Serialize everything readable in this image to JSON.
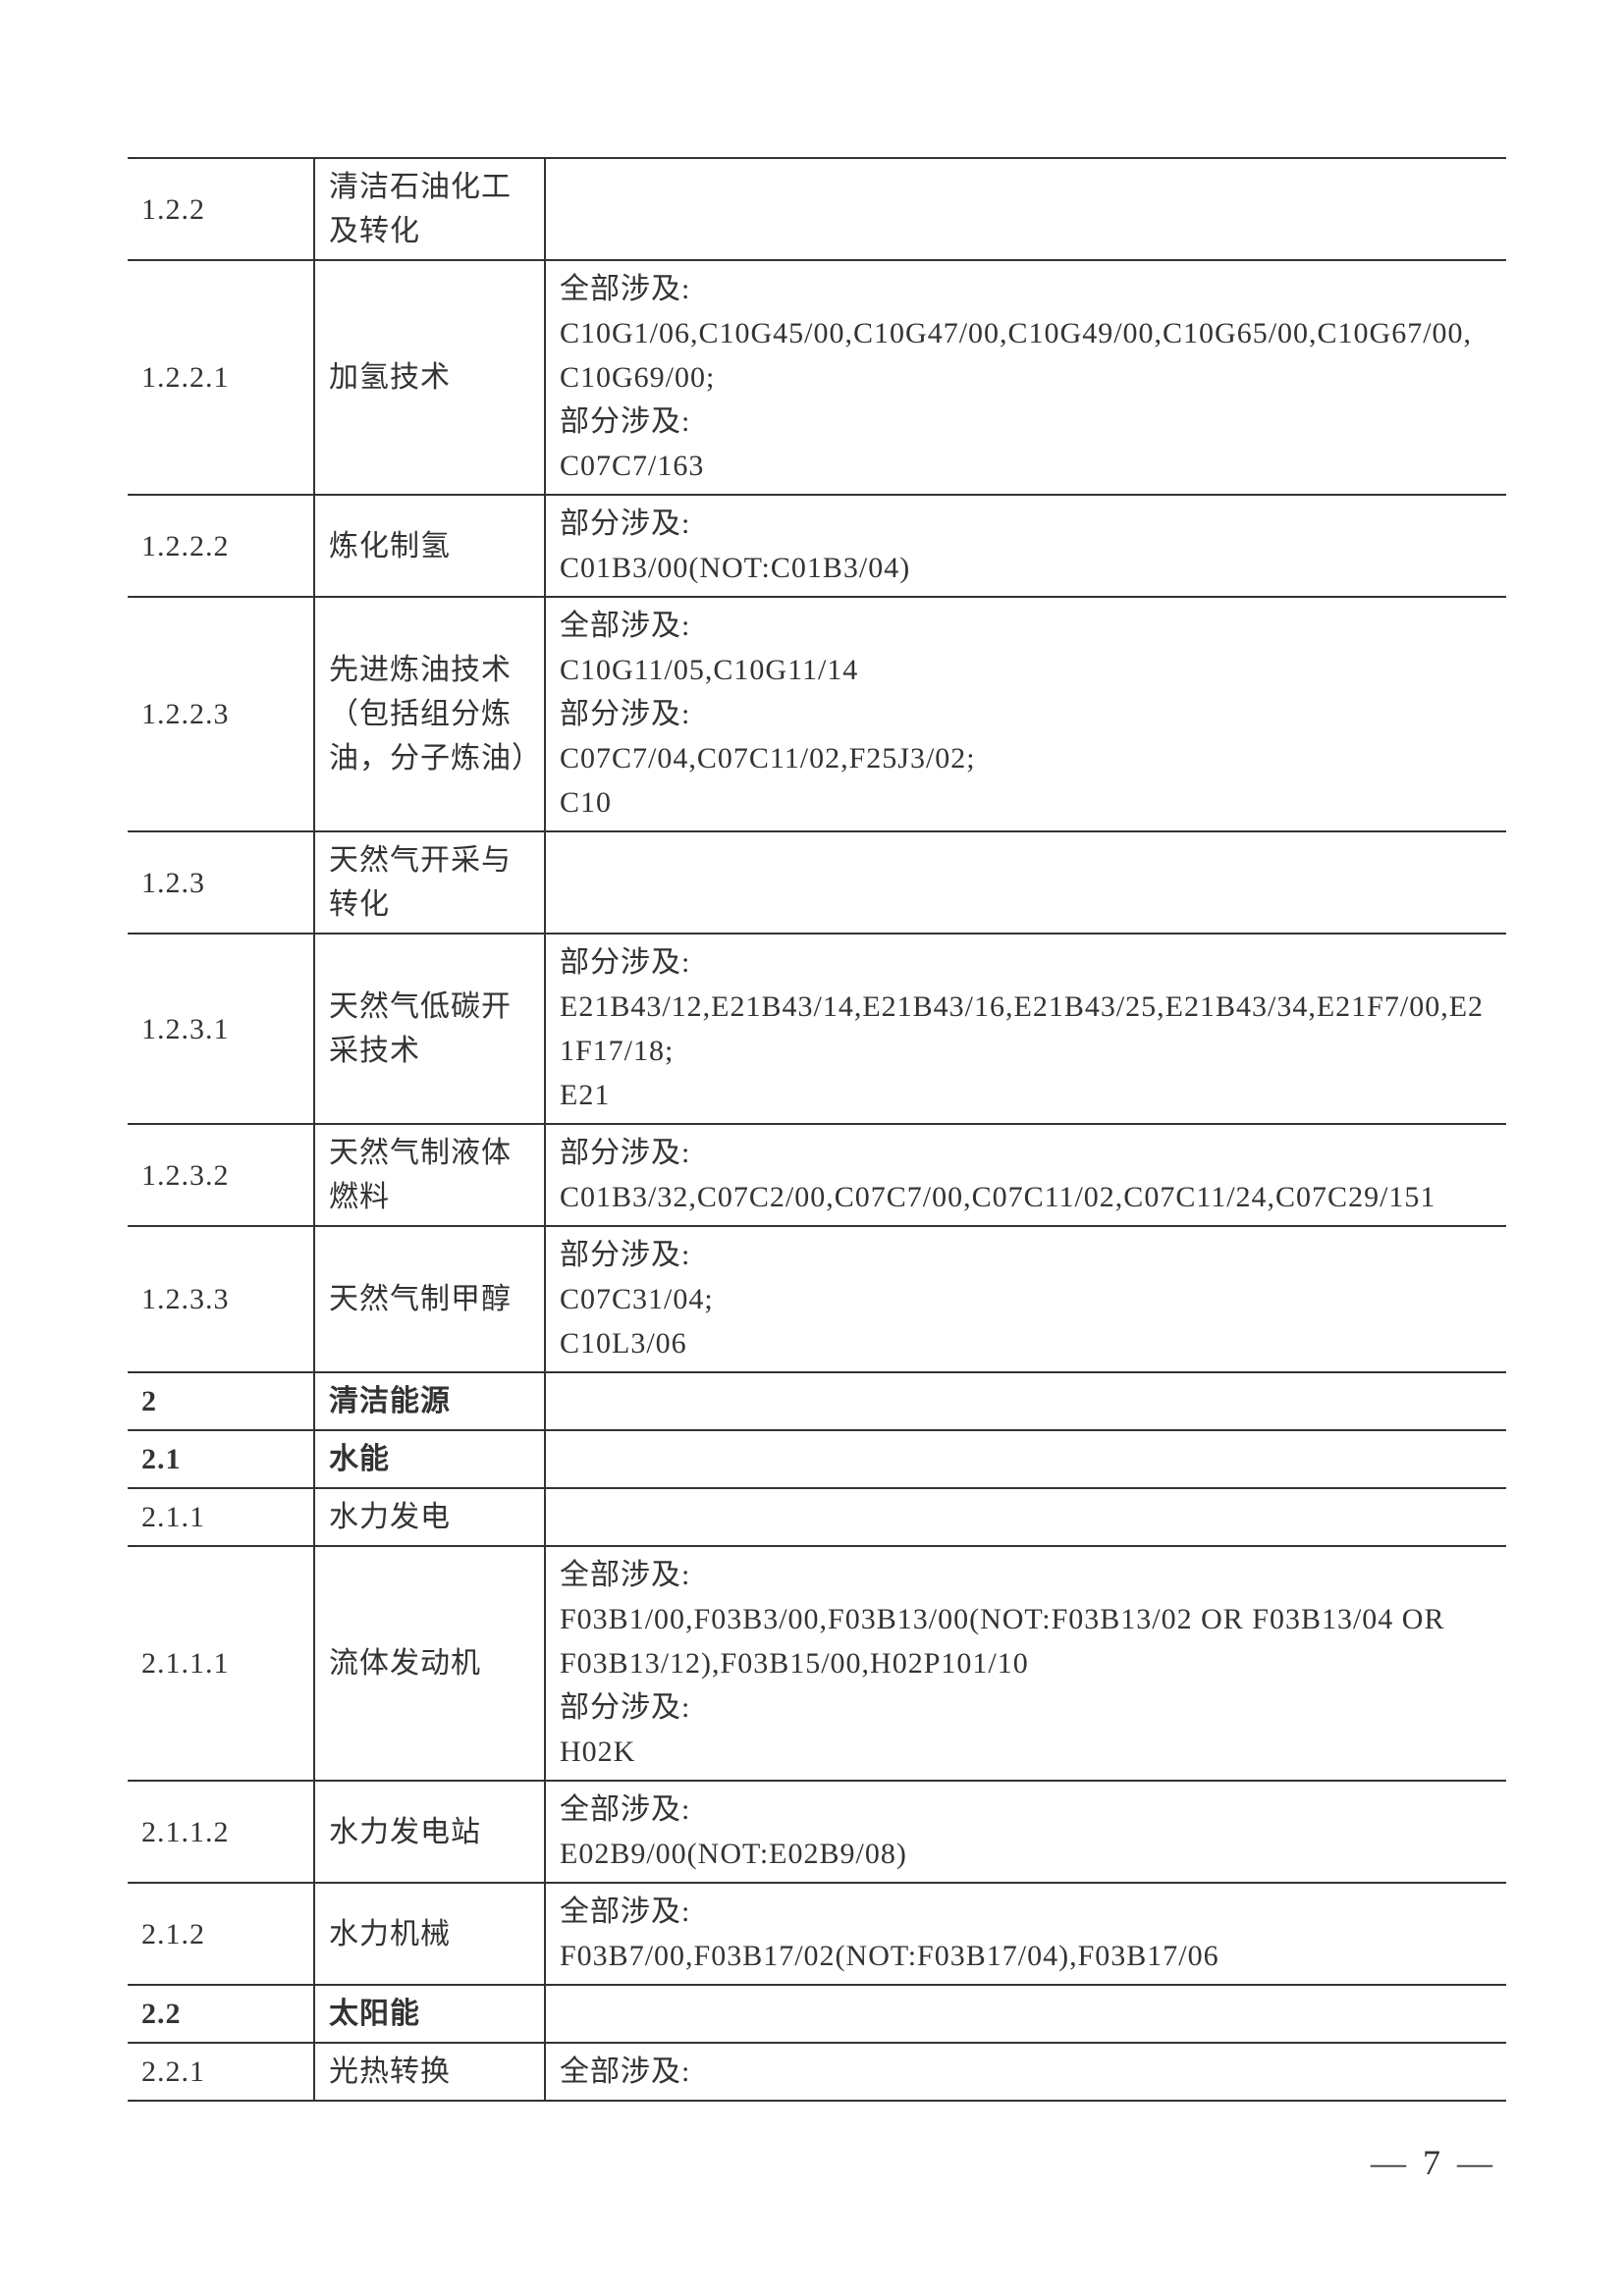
{
  "page_number": "— 7 —",
  "table": {
    "text_color": "#333333",
    "border_color": "#333333",
    "fontsize": 30,
    "rows": [
      {
        "code": "1.2.2",
        "name": "清洁石油化工及转化",
        "desc": "",
        "bold": false
      },
      {
        "code": "1.2.2.1",
        "name": "加氢技术",
        "desc": "全部涉及:\nC10G1/06,C10G45/00,C10G47/00,C10G49/00,C10G65/00,C10G67/00,C10G69/00;\n部分涉及:\nC07C7/163",
        "bold": false
      },
      {
        "code": "1.2.2.2",
        "name": "炼化制氢",
        "desc": "部分涉及:\nC01B3/00(NOT:C01B3/04)",
        "bold": false
      },
      {
        "code": "1.2.2.3",
        "name": "先进炼油技术（包括组分炼油，分子炼油）",
        "desc": "全部涉及:\nC10G11/05,C10G11/14\n部分涉及:\nC07C7/04,C07C11/02,F25J3/02;\nC10",
        "bold": false
      },
      {
        "code": "1.2.3",
        "name": "天然气开采与转化",
        "desc": "",
        "bold": false
      },
      {
        "code": "1.2.3.1",
        "name": "天然气低碳开采技术",
        "desc": "部分涉及:\nE21B43/12,E21B43/14,E21B43/16,E21B43/25,E21B43/34,E21F7/00,E21F17/18;\nE21",
        "bold": false
      },
      {
        "code": "1.2.3.2",
        "name": "天然气制液体燃料",
        "desc": "部分涉及:\nC01B3/32,C07C2/00,C07C7/00,C07C11/02,C07C11/24,C07C29/151",
        "bold": false
      },
      {
        "code": "1.2.3.3",
        "name": "天然气制甲醇",
        "desc": "部分涉及:\nC07C31/04;\nC10L3/06",
        "bold": false
      },
      {
        "code": "2",
        "name": "清洁能源",
        "desc": "",
        "bold": true
      },
      {
        "code": "2.1",
        "name": "水能",
        "desc": "",
        "bold": true
      },
      {
        "code": "2.1.1",
        "name": "水力发电",
        "desc": "",
        "bold": false
      },
      {
        "code": "2.1.1.1",
        "name": "流体发动机",
        "desc": "全部涉及:\nF03B1/00,F03B3/00,F03B13/00(NOT:F03B13/02 OR F03B13/04 OR\nF03B13/12),F03B15/00,H02P101/10\n部分涉及:\nH02K",
        "bold": false
      },
      {
        "code": "2.1.1.2",
        "name": "水力发电站",
        "desc": "全部涉及:\nE02B9/00(NOT:E02B9/08)",
        "bold": false
      },
      {
        "code": "2.1.2",
        "name": "水力机械",
        "desc": "全部涉及:\nF03B7/00,F03B17/02(NOT:F03B17/04),F03B17/06",
        "bold": false
      },
      {
        "code": "2.2",
        "name": "太阳能",
        "desc": "",
        "bold": true
      },
      {
        "code": "2.2.1",
        "name": "光热转换",
        "desc": "全部涉及:",
        "bold": false
      }
    ]
  }
}
